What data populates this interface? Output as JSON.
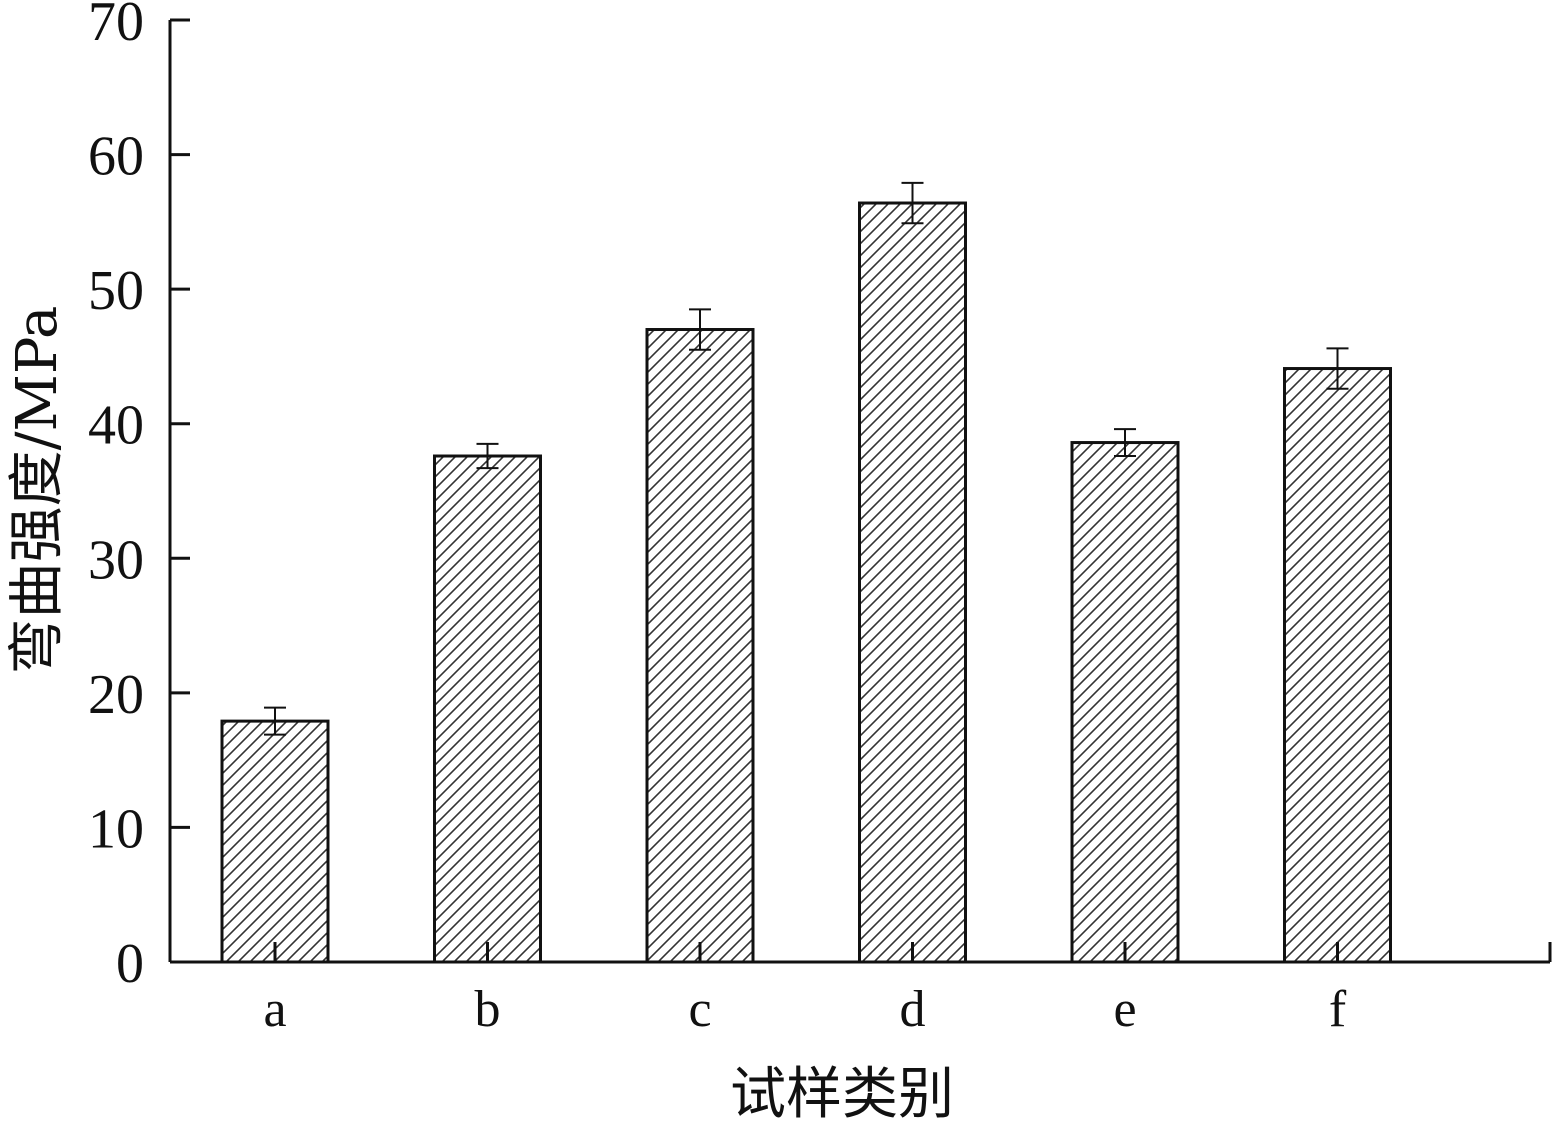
{
  "chart_data": {
    "type": "bar",
    "categories": [
      "a",
      "b",
      "c",
      "d",
      "e",
      "f"
    ],
    "values": [
      17.9,
      37.6,
      47.0,
      56.4,
      38.6,
      44.1
    ],
    "error_bars": [
      1.0,
      0.9,
      1.5,
      1.5,
      1.0,
      1.5
    ],
    "title": "",
    "xlabel": "试样类别",
    "ylabel": "弯曲强度/MPa",
    "ylim": [
      0,
      70
    ],
    "yticks": [
      0,
      10,
      20,
      30,
      40,
      50,
      60,
      70
    ],
    "grid": false,
    "legend": "none",
    "bar_fill": "#ffffff",
    "bar_pattern": "diagonal-hatch",
    "bar_stroke": "#111111",
    "axis_color": "#111111"
  }
}
